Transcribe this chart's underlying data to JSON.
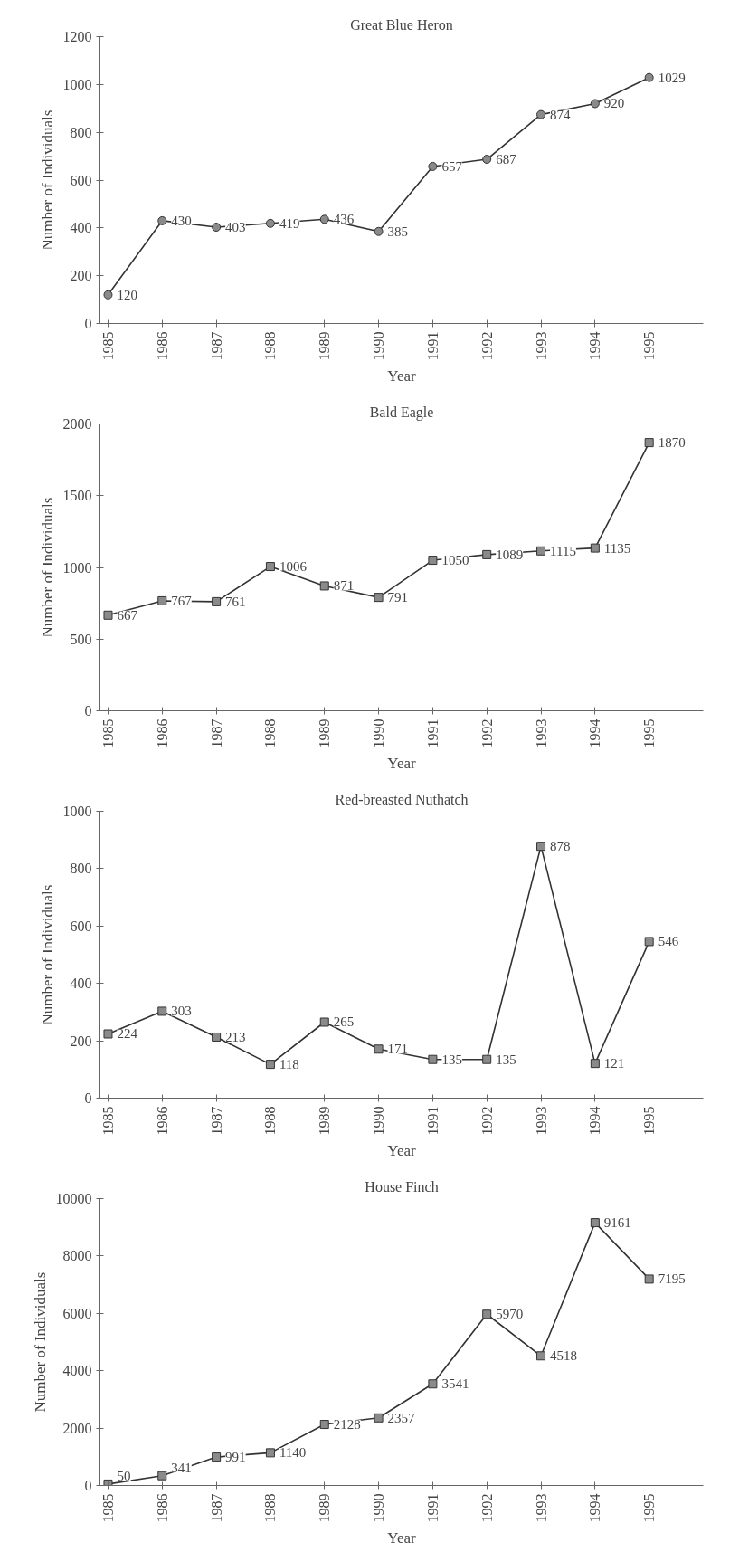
{
  "chart_data": [
    {
      "type": "line",
      "title": "Great Blue Heron",
      "xlabel": "Year",
      "ylabel": "Number of Individuals",
      "categories": [
        "1985",
        "1986",
        "1987",
        "1988",
        "1989",
        "1990",
        "1991",
        "1992",
        "1993",
        "1994",
        "1995"
      ],
      "ylim": [
        0,
        1200
      ],
      "yticks": [
        0,
        200,
        400,
        600,
        800,
        1000,
        1200
      ],
      "marker": "circle",
      "data_labels": true,
      "series": [
        {
          "color": "#333333",
          "values": [
            120,
            430,
            403,
            419,
            436,
            385,
            657,
            687,
            874,
            920,
            1029
          ]
        }
      ]
    },
    {
      "type": "line",
      "title": "Bald Eagle",
      "xlabel": "Year",
      "ylabel": "Number of Individuals",
      "categories": [
        "1985",
        "1986",
        "1987",
        "1988",
        "1989",
        "1990",
        "1991",
        "1992",
        "1993",
        "1994",
        "1995"
      ],
      "ylim": [
        0,
        2000
      ],
      "yticks": [
        0,
        500,
        1000,
        1500,
        2000
      ],
      "marker": "square",
      "data_labels": true,
      "series": [
        {
          "color": "#333333",
          "values": [
            667,
            767,
            761,
            1006,
            871,
            791,
            1050,
            1089,
            1115,
            1135,
            1870
          ]
        }
      ]
    },
    {
      "type": "line",
      "title": "Red-breasted Nuthatch",
      "xlabel": "Year",
      "ylabel": "Number of Individuals",
      "categories": [
        "1985",
        "1986",
        "1987",
        "1988",
        "1989",
        "1990",
        "1991",
        "1992",
        "1993",
        "1994",
        "1995"
      ],
      "ylim": [
        0,
        1000
      ],
      "yticks": [
        0,
        200,
        400,
        600,
        800,
        1000
      ],
      "marker": "square",
      "data_labels": true,
      "series": [
        {
          "color": "#333333",
          "values": [
            224,
            303,
            213,
            118,
            265,
            171,
            135,
            135,
            878,
            121,
            546
          ]
        }
      ]
    },
    {
      "type": "line",
      "title": "House Finch",
      "xlabel": "Year",
      "ylabel": "Number of Individuals",
      "categories": [
        "1985",
        "1986",
        "1987",
        "1988",
        "1989",
        "1990",
        "1991",
        "1992",
        "1993",
        "1994",
        "1995"
      ],
      "ylim": [
        0,
        10000
      ],
      "yticks": [
        0,
        2000,
        4000,
        6000,
        8000,
        10000
      ],
      "marker": "square",
      "data_labels": true,
      "series": [
        {
          "color": "#333333",
          "values": [
            50,
            341,
            991,
            1140,
            2128,
            2357,
            3541,
            5970,
            4518,
            9161,
            7195
          ]
        }
      ]
    }
  ]
}
